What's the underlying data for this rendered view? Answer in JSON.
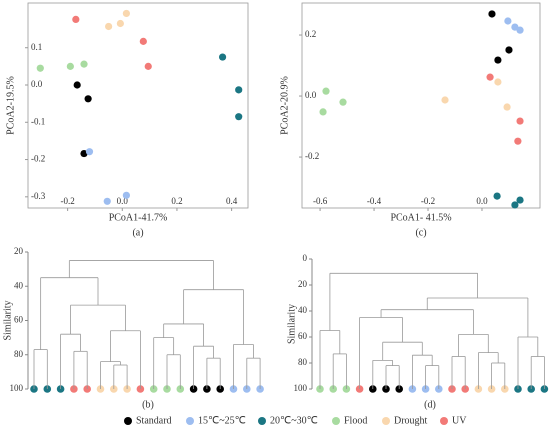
{
  "chart_data": [
    {
      "type": "scatter",
      "caption": "(a)",
      "xlabel": "PCoA1-41.7%",
      "ylabel": "PCoA2-19.5%",
      "xlim": [
        -0.345,
        0.46
      ],
      "ylim": [
        -0.33,
        0.22
      ],
      "xticks": [
        -0.2,
        {
          "value": 0,
          "label": "0.0"
        },
        0.2,
        0.4
      ],
      "yticks": [
        -0.3,
        -0.2,
        -0.1,
        {
          "value": 0,
          "label": "0.0"
        },
        0.1
      ],
      "series": [
        {
          "color": "#000000",
          "x": [
            -0.165,
            -0.125,
            -0.14
          ],
          "values": [
            0.0,
            -0.037,
            -0.184
          ]
        },
        {
          "color": "#9dbdf0",
          "x": [
            -0.12,
            0.015,
            -0.055
          ],
          "values": [
            -0.179,
            -0.296,
            -0.312
          ]
        },
        {
          "color": "#1b7683",
          "x": [
            0.367,
            0.426,
            0.426
          ],
          "values": [
            0.075,
            -0.013,
            -0.085
          ]
        },
        {
          "color": "#a8dba0",
          "x": [
            -0.3,
            -0.19,
            -0.14
          ],
          "values": [
            0.045,
            0.05,
            0.056
          ]
        },
        {
          "color": "#f9d7ae",
          "x": [
            -0.05,
            -0.007,
            0.015
          ],
          "values": [
            0.157,
            0.165,
            0.192
          ]
        },
        {
          "color": "#f27a77",
          "x": [
            -0.17,
            0.077,
            0.095
          ],
          "values": [
            0.176,
            0.117,
            0.05
          ]
        }
      ]
    },
    {
      "type": "scatter",
      "caption": "(c)",
      "xlabel": "PCoA1- 41.5%",
      "ylabel": "PCoA2-20.9%",
      "xlim": [
        -0.667,
        0.215
      ],
      "ylim": [
        -0.367,
        0.305
      ],
      "xticks": [
        -0.6,
        -0.4,
        -0.2,
        {
          "value": 0,
          "label": "0.0"
        }
      ],
      "yticks": [
        -0.2,
        {
          "value": 0,
          "label": "0.0"
        },
        0.2
      ],
      "series": [
        {
          "color": "#000000",
          "x": [
            0.037,
            0.1,
            0.059
          ],
          "values": [
            0.269,
            0.151,
            0.118
          ]
        },
        {
          "color": "#9dbdf0",
          "x": [
            0.096,
            0.122,
            0.141
          ],
          "values": [
            0.246,
            0.226,
            0.216
          ]
        },
        {
          "color": "#1b7683",
          "x": [
            0.056,
            0.141,
            0.122
          ],
          "values": [
            -0.328,
            -0.341,
            -0.357
          ]
        },
        {
          "color": "#a8dba0",
          "x": [
            -0.578,
            -0.515,
            -0.589
          ],
          "values": [
            0.016,
            -0.02,
            -0.052
          ]
        },
        {
          "color": "#f9d7ae",
          "x": [
            0.059,
            -0.137,
            0.093
          ],
          "values": [
            0.046,
            -0.013,
            -0.036
          ]
        },
        {
          "color": "#f27a77",
          "x": [
            0.03,
            0.141,
            0.133
          ],
          "values": [
            0.062,
            -0.082,
            -0.148
          ]
        }
      ]
    },
    {
      "type": "dendrogram",
      "caption": "(b)",
      "ylabel": "Similarity",
      "ylim": [
        20,
        100
      ],
      "y_inverted": true,
      "yticks": [
        20,
        40,
        60,
        80,
        100
      ],
      "tree": {
        "height": 25,
        "children": [
          {
            "height": 35,
            "children": [
              {
                "height": 77,
                "children": [
                  "#1b7683",
                  "#1b7683"
                ]
              },
              {
                "height": 51,
                "children": [
                  {
                    "height": 68,
                    "children": [
                      "#1b7683",
                      {
                        "height": 78,
                        "children": [
                          "#f27a77",
                          "#f27a77"
                        ]
                      }
                    ]
                  },
                  {
                    "height": 66,
                    "children": [
                      {
                        "height": 84,
                        "children": [
                          "#f9d7ae",
                          {
                            "height": 86,
                            "children": [
                              "#f9d7ae",
                              "#f9d7ae"
                            ]
                          }
                        ]
                      },
                      "#f27a77"
                    ]
                  }
                ]
              }
            ]
          },
          {
            "height": 42,
            "children": [
              {
                "height": 62,
                "children": [
                  {
                    "height": 70,
                    "children": [
                      "#a8dba0",
                      {
                        "height": 80,
                        "children": [
                          "#a8dba0",
                          "#a8dba0"
                        ]
                      }
                    ]
                  },
                  {
                    "height": 75,
                    "children": [
                      "#000000",
                      {
                        "height": 82,
                        "children": [
                          "#000000",
                          "#000000"
                        ]
                      }
                    ]
                  }
                ]
              },
              {
                "height": 74,
                "children": [
                  "#9dbdf0",
                  {
                    "height": 82,
                    "children": [
                      "#9dbdf0",
                      "#9dbdf0"
                    ]
                  }
                ]
              }
            ]
          }
        ]
      }
    },
    {
      "type": "dendrogram",
      "caption": "(d)",
      "ylabel": "Similarity",
      "ylim": [
        0,
        100
      ],
      "y_inverted": true,
      "yticks": [
        0,
        20,
        40,
        60,
        80,
        100
      ],
      "tree": {
        "height": 11,
        "children": [
          {
            "height": 55,
            "children": [
              "#a8dba0",
              {
                "height": 73,
                "children": [
                  "#a8dba0",
                  "#a8dba0"
                ]
              }
            ]
          },
          {
            "height": 30,
            "children": [
              {
                "height": 39,
                "children": [
                  {
                    "height": 45,
                    "children": [
                      "#f27a77",
                      {
                        "height": 64,
                        "children": [
                          {
                            "height": 78,
                            "children": [
                              "#000000",
                              {
                                "height": 82,
                                "children": [
                                  "#000000",
                                  "#000000"
                                ]
                              }
                            ]
                          },
                          {
                            "height": 74,
                            "children": [
                              "#9dbdf0",
                              {
                                "height": 82,
                                "children": [
                                  "#9dbdf0",
                                  "#9dbdf0"
                                ]
                              }
                            ]
                          }
                        ]
                      }
                    ]
                  },
                  {
                    "height": 58,
                    "children": [
                      {
                        "height": 75,
                        "children": [
                          "#f27a77",
                          "#f27a77"
                        ]
                      },
                      {
                        "height": 72,
                        "children": [
                          "#f9d7ae",
                          {
                            "height": 80,
                            "children": [
                              "#f9d7ae",
                              "#f9d7ae"
                            ]
                          }
                        ]
                      }
                    ]
                  }
                ]
              },
              {
                "height": 60,
                "children": [
                  "#1b7683",
                  {
                    "height": 75,
                    "children": [
                      "#1b7683",
                      "#1b7683"
                    ]
                  }
                ]
              }
            ]
          }
        ]
      }
    }
  ],
  "legend": {
    "items": [
      {
        "label": "Standard",
        "color": "#000000"
      },
      {
        "label": "15℃~25℃",
        "color": "#9dbdf0"
      },
      {
        "label": "20℃~30℃",
        "color": "#1b7683"
      },
      {
        "label": "Flood",
        "color": "#a8dba0"
      },
      {
        "label": "Drought",
        "color": "#f9d7ae"
      },
      {
        "label": "UV",
        "color": "#f27a77"
      }
    ]
  }
}
